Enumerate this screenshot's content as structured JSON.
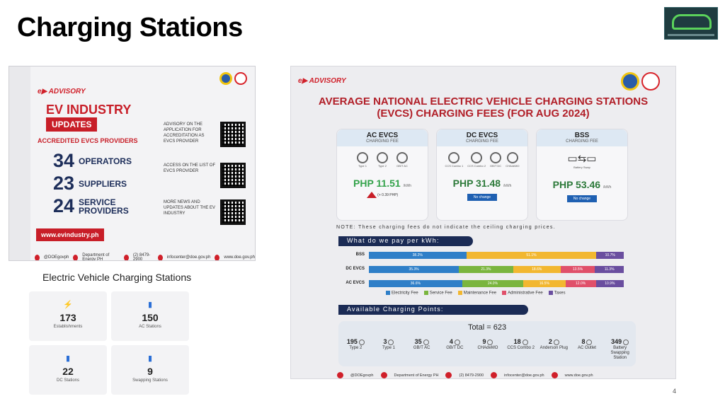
{
  "slide": {
    "title": "Charging Stations",
    "page_number": "4"
  },
  "left_advisory": {
    "brand": "ADVISORY",
    "headline": "EV INDUSTRY",
    "badge": "UPDATES",
    "subhead": "ACCREDITED EVCS PROVIDERS",
    "stats": [
      {
        "value": "34",
        "label": "OPERATORS"
      },
      {
        "value": "23",
        "label": "SUPPLIERS"
      },
      {
        "value": "24",
        "label": "SERVICE PROVIDERS"
      }
    ],
    "qr_items": [
      "ADVISORY ON THE APPLICATION FOR ACCREDITATION AS EVCS PROVIDER",
      "ACCESS ON THE LIST OF EVCS PROVIDER",
      "MORE NEWS AND UPDATES ABOUT THE EV INDUSTRY"
    ],
    "url": "www.evindustry.ph",
    "footer": [
      "@DOEgovph",
      "Department of Energy PH",
      "(2) 8479-2900",
      "infocenter@doe.gov.ph",
      "www.doe.gov.ph"
    ]
  },
  "stations_widget": {
    "heading": "Electric Vehicle Charging Stations",
    "cards": [
      {
        "value": "173",
        "caption": "Establishments",
        "icon": "lightning-icon"
      },
      {
        "value": "150",
        "caption": "AC Stations",
        "icon": "battery-icon"
      },
      {
        "value": "22",
        "caption": "DC Stations",
        "icon": "battery-icon"
      },
      {
        "value": "9",
        "caption": "Swapping Stations",
        "icon": "battery-swap-icon"
      }
    ]
  },
  "right_advisory": {
    "brand": "ADVISORY",
    "title_line1": "AVERAGE NATIONAL ELECTRIC VEHICLE CHARGING STATIONS",
    "title_line2": "(EVCS) CHARGING FEES (FOR AUG 2024)",
    "fees": [
      {
        "name": "AC EVCS",
        "sub": "CHARGING FEE",
        "price": "PHP 11.51",
        "unit": "/kWh",
        "change": "(+ 0.39 PHP)",
        "plugs": [
          "Type 1",
          "Type 2",
          "GB/T AC"
        ]
      },
      {
        "name": "DC EVCS",
        "sub": "CHARGING FEE",
        "price": "PHP 31.48",
        "unit": "/kWh",
        "change": "No change",
        "plugs": [
          "CCS Combo 1",
          "CCS Combo 2",
          "GB/T DC",
          "CHAdeMO"
        ]
      },
      {
        "name": "BSS",
        "sub": "CHARGING FEE",
        "price": "PHP 53.46",
        "unit": "/kWh",
        "change": "No change",
        "plugs": [
          "Battery Swap"
        ]
      }
    ],
    "note": "NOTE: These charging fees do not indicate the ceiling charging prices.",
    "pay_heading": "What do we pay per kWh:",
    "breakdown": [
      {
        "label": "BSS",
        "segments": [
          {
            "value": 38.2,
            "text": "38.2%"
          },
          {
            "value": 0,
            "text": ""
          },
          {
            "value": 51.1,
            "text": "51.1%"
          },
          {
            "value": 0,
            "text": ""
          },
          {
            "value": 10.7,
            "text": "10.7%"
          }
        ]
      },
      {
        "label": "DC EVCS",
        "segments": [
          {
            "value": 35.3,
            "text": "35.3%"
          },
          {
            "value": 21.3,
            "text": "21.3%"
          },
          {
            "value": 18.6,
            "text": "18.6%"
          },
          {
            "value": 13.5,
            "text": "13.5%"
          },
          {
            "value": 11.3,
            "text": "11.3%"
          }
        ]
      },
      {
        "label": "AC EVCS",
        "segments": [
          {
            "value": 36.6,
            "text": "36.6%"
          },
          {
            "value": 24.0,
            "text": "24.0%"
          },
          {
            "value": 16.5,
            "text": "16.5%"
          },
          {
            "value": 12.0,
            "text": "12.0%"
          },
          {
            "value": 10.9,
            "text": "10.9%"
          }
        ]
      }
    ],
    "legend": [
      {
        "label": "Electricity Fee",
        "color": "#2f7fc8"
      },
      {
        "label": "Service Fee",
        "color": "#7ab53e"
      },
      {
        "label": "Maintenance Fee",
        "color": "#f2b730"
      },
      {
        "label": "Administrative Fee",
        "color": "#e0506a"
      },
      {
        "label": "Taxes",
        "color": "#6a4e9f"
      }
    ],
    "points_heading": "Available Charging Points:",
    "points_total": "Total = 623",
    "points": [
      {
        "n": "195",
        "c": "Type 2"
      },
      {
        "n": "3",
        "c": "Type 1"
      },
      {
        "n": "35",
        "c": "GB/T AC"
      },
      {
        "n": "4",
        "c": "GB/T DC"
      },
      {
        "n": "9",
        "c": "CHAdeMO"
      },
      {
        "n": "18",
        "c": "CCS Combo 2"
      },
      {
        "n": "2",
        "c": "Anderson Plug"
      },
      {
        "n": "8",
        "c": "AC Outlet"
      },
      {
        "n": "349",
        "c": "Battery Swapping Station"
      }
    ],
    "footer": [
      "@DOEgovph",
      "Department of Energy PH",
      "(2) 8479-2900",
      "infocenter@doe.gov.ph",
      "www.doe.gov.ph"
    ]
  }
}
